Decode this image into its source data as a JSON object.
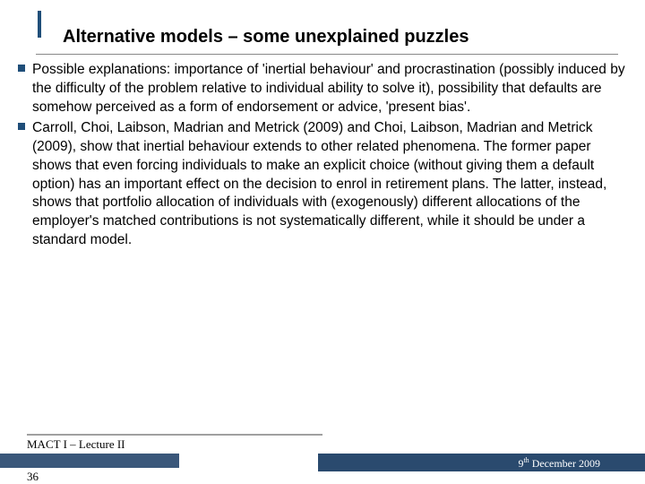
{
  "title": "Alternative models – some unexplained puzzles",
  "bullets": [
    "Possible explanations: importance of 'inertial behaviour' and procrastination (possibly induced by the difficulty of the problem relative to individual ability to solve it), possibility that defaults are somehow perceived as a form of endorsement or advice, 'present bias'.",
    "Carroll, Choi, Laibson, Madrian and Metrick (2009) and Choi, Laibson, Madrian and Metrick (2009), show that inertial behaviour extends to other related phenomena. The former paper shows that even forcing individuals to make an explicit choice (without giving them a default option) has an important effect on the decision to enrol in retirement plans. The latter, instead, shows that portfolio allocation of individuals with (exogenously) different allocations of the employer's matched contributions is not systematically different, while it should be under a standard model."
  ],
  "footer": {
    "course": "MACT I – Lecture II",
    "page": "36",
    "date_day": "9",
    "date_suffix": "th",
    "date_rest": " December  2009"
  },
  "colors": {
    "accent": "#1f4e79",
    "footer_bar_left": "#3a577a",
    "footer_bar_right": "#2a4a6e",
    "underline": "#888888",
    "text": "#000000",
    "date_text": "#ffffff"
  },
  "typography": {
    "title_fontsize": 20,
    "body_fontsize": 15.5,
    "footer_fontsize": 13,
    "body_font": "Verdana",
    "footer_font": "Times New Roman"
  }
}
